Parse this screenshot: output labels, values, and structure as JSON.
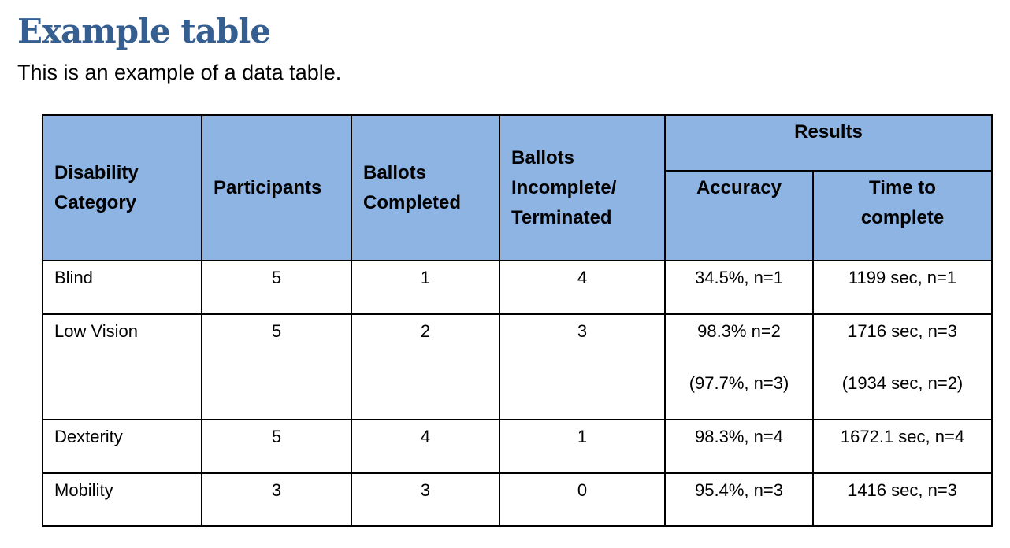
{
  "title": "Example table",
  "subtitle": "This is an example of a data table.",
  "header_color": "#8EB4E3",
  "title_color": "#365F91",
  "table": {
    "headers": {
      "category": "Disability Category",
      "participants": "Participants",
      "completed": "Ballots Completed",
      "incomplete": "Ballots Incomplete/ Terminated",
      "results": "Results",
      "accuracy": "Accuracy",
      "time": "Time to complete"
    },
    "rows": [
      {
        "category": "Blind",
        "participants": "5",
        "completed": "1",
        "incomplete": "4",
        "accuracy": "34.5%, n=1",
        "accuracy_alt": "",
        "time": "1199 sec, n=1",
        "time_alt": ""
      },
      {
        "category": "Low Vision",
        "participants": "5",
        "completed": "2",
        "incomplete": "3",
        "accuracy": "98.3% n=2",
        "accuracy_alt": "(97.7%, n=3)",
        "time": "1716 sec, n=3",
        "time_alt": "(1934 sec, n=2)"
      },
      {
        "category": "Dexterity",
        "participants": "5",
        "completed": "4",
        "incomplete": "1",
        "accuracy": "98.3%, n=4",
        "accuracy_alt": "",
        "time": "1672.1 sec, n=4",
        "time_alt": ""
      },
      {
        "category": "Mobility",
        "participants": "3",
        "completed": "3",
        "incomplete": "0",
        "accuracy": "95.4%, n=3",
        "accuracy_alt": "",
        "time": "1416 sec, n=3",
        "time_alt": ""
      }
    ]
  }
}
